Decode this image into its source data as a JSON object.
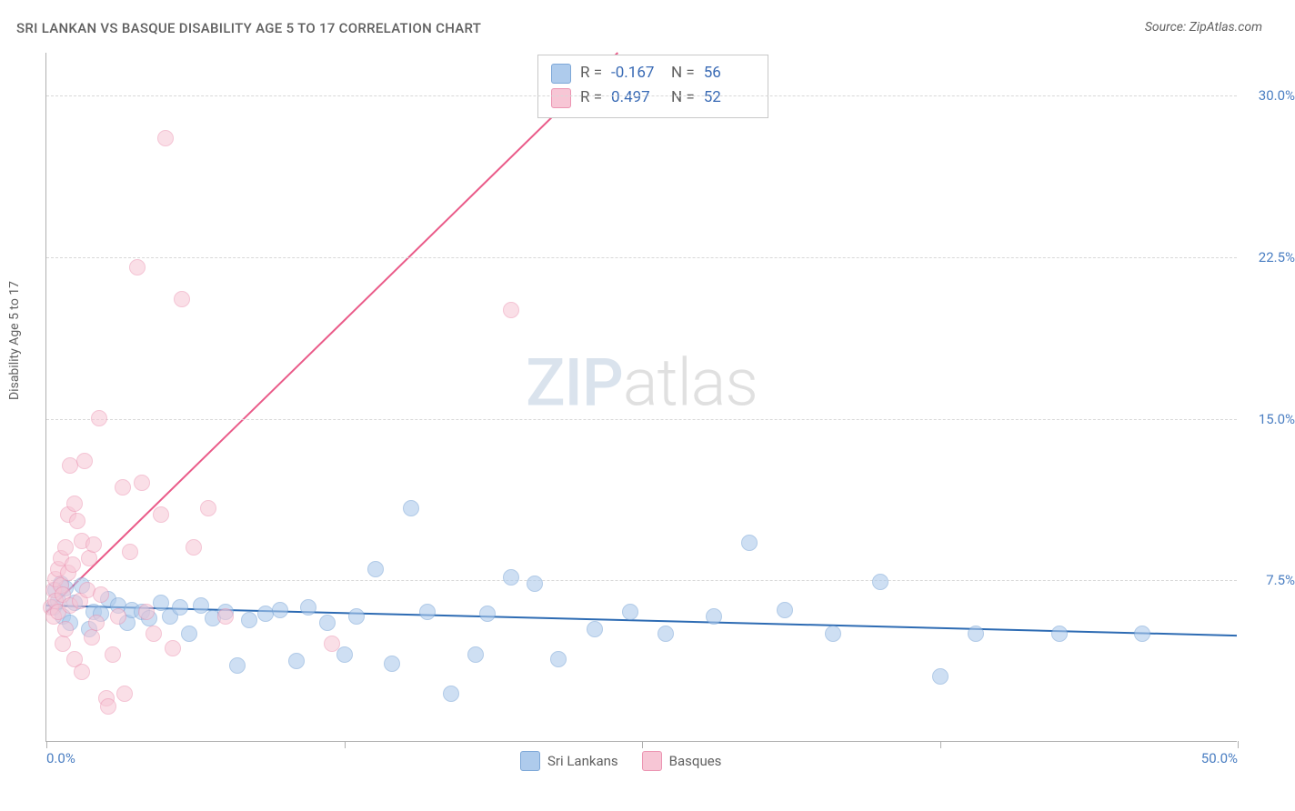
{
  "title": "SRI LANKAN VS BASQUE DISABILITY AGE 5 TO 17 CORRELATION CHART",
  "source": "Source: ZipAtlas.com",
  "ylabel": "Disability Age 5 to 17",
  "watermark": {
    "left": "ZIP",
    "right": "atlas"
  },
  "chart": {
    "type": "scatter",
    "xlim": [
      0,
      50
    ],
    "ylim": [
      0,
      32
    ],
    "xtick_positions": [
      0,
      12.5,
      25,
      37.5,
      50
    ],
    "xtick_labels": {
      "0": "0.0%",
      "50": "50.0%"
    },
    "ytick_positions": [
      7.5,
      15.0,
      22.5,
      30.0
    ],
    "ytick_labels": [
      "7.5%",
      "15.0%",
      "22.5%",
      "30.0%"
    ],
    "grid_color": "#d8d8d8",
    "axis_color": "#b0b0b0",
    "background_color": "#ffffff",
    "tick_label_color": "#4a7ec2",
    "tick_fontsize": 15,
    "title_fontsize": 15,
    "label_fontsize": 14,
    "point_radius": 9,
    "point_stroke_width": 1,
    "series": [
      {
        "name": "Sri Lankans",
        "fill": "#aecbec",
        "stroke": "#7ea8d8",
        "fill_opacity": 0.6,
        "points": [
          [
            0.3,
            6.2
          ],
          [
            0.4,
            7.0
          ],
          [
            0.5,
            6.5
          ],
          [
            0.6,
            7.3
          ],
          [
            0.7,
            5.8
          ],
          [
            0.8,
            7.1
          ],
          [
            1.0,
            5.5
          ],
          [
            1.2,
            6.4
          ],
          [
            1.5,
            7.2
          ],
          [
            1.8,
            5.2
          ],
          [
            2.0,
            6.0
          ],
          [
            2.3,
            5.9
          ],
          [
            2.6,
            6.6
          ],
          [
            3.0,
            6.3
          ],
          [
            3.4,
            5.5
          ],
          [
            3.6,
            6.1
          ],
          [
            4.0,
            6.0
          ],
          [
            4.3,
            5.7
          ],
          [
            4.8,
            6.4
          ],
          [
            5.2,
            5.8
          ],
          [
            5.6,
            6.2
          ],
          [
            6.0,
            5.0
          ],
          [
            6.5,
            6.3
          ],
          [
            7.0,
            5.7
          ],
          [
            7.5,
            6.0
          ],
          [
            8.0,
            3.5
          ],
          [
            8.5,
            5.6
          ],
          [
            9.2,
            5.9
          ],
          [
            9.8,
            6.1
          ],
          [
            10.5,
            3.7
          ],
          [
            11.0,
            6.2
          ],
          [
            11.8,
            5.5
          ],
          [
            12.5,
            4.0
          ],
          [
            13.0,
            5.8
          ],
          [
            13.8,
            8.0
          ],
          [
            14.5,
            3.6
          ],
          [
            15.3,
            10.8
          ],
          [
            16.0,
            6.0
          ],
          [
            17.0,
            2.2
          ],
          [
            18.0,
            4.0
          ],
          [
            18.5,
            5.9
          ],
          [
            19.5,
            7.6
          ],
          [
            20.5,
            7.3
          ],
          [
            21.5,
            3.8
          ],
          [
            23.0,
            5.2
          ],
          [
            24.5,
            6.0
          ],
          [
            26.0,
            5.0
          ],
          [
            28.0,
            5.8
          ],
          [
            29.5,
            9.2
          ],
          [
            31.0,
            6.1
          ],
          [
            33.0,
            5.0
          ],
          [
            35.0,
            7.4
          ],
          [
            37.5,
            3.0
          ],
          [
            39.0,
            5.0
          ],
          [
            42.5,
            5.0
          ],
          [
            46.0,
            5.0
          ]
        ],
        "trend": {
          "x1": 0,
          "y1": 6.3,
          "x2": 50,
          "y2": 4.9,
          "color": "#2d6bb3",
          "width": 2
        }
      },
      {
        "name": "Basques",
        "fill": "#f7c6d5",
        "stroke": "#ec95b2",
        "fill_opacity": 0.55,
        "points": [
          [
            0.2,
            6.2
          ],
          [
            0.3,
            7.0
          ],
          [
            0.3,
            5.8
          ],
          [
            0.4,
            6.5
          ],
          [
            0.4,
            7.5
          ],
          [
            0.5,
            8.0
          ],
          [
            0.5,
            6.0
          ],
          [
            0.6,
            7.2
          ],
          [
            0.6,
            8.5
          ],
          [
            0.7,
            6.8
          ],
          [
            0.7,
            4.5
          ],
          [
            0.8,
            5.2
          ],
          [
            0.8,
            9.0
          ],
          [
            0.9,
            10.5
          ],
          [
            0.9,
            7.8
          ],
          [
            1.0,
            12.8
          ],
          [
            1.0,
            6.3
          ],
          [
            1.1,
            8.2
          ],
          [
            1.2,
            3.8
          ],
          [
            1.2,
            11.0
          ],
          [
            1.3,
            10.2
          ],
          [
            1.4,
            6.5
          ],
          [
            1.5,
            9.3
          ],
          [
            1.5,
            3.2
          ],
          [
            1.6,
            13.0
          ],
          [
            1.7,
            7.0
          ],
          [
            1.8,
            8.5
          ],
          [
            1.9,
            4.8
          ],
          [
            2.0,
            9.1
          ],
          [
            2.1,
            5.5
          ],
          [
            2.2,
            15.0
          ],
          [
            2.3,
            6.8
          ],
          [
            2.5,
            2.0
          ],
          [
            2.6,
            1.6
          ],
          [
            2.8,
            4.0
          ],
          [
            3.0,
            5.8
          ],
          [
            3.2,
            11.8
          ],
          [
            3.3,
            2.2
          ],
          [
            3.5,
            8.8
          ],
          [
            3.8,
            22.0
          ],
          [
            4.0,
            12.0
          ],
          [
            4.2,
            6.0
          ],
          [
            4.5,
            5.0
          ],
          [
            4.8,
            10.5
          ],
          [
            5.0,
            28.0
          ],
          [
            5.3,
            4.3
          ],
          [
            5.7,
            20.5
          ],
          [
            6.2,
            9.0
          ],
          [
            6.8,
            10.8
          ],
          [
            7.5,
            5.8
          ],
          [
            12.0,
            4.5
          ],
          [
            19.5,
            20.0
          ]
        ],
        "trend": {
          "x1": 0,
          "y1": 6.0,
          "x2": 24,
          "y2": 32,
          "color": "#ea5b89",
          "width": 2
        }
      }
    ]
  },
  "stats": {
    "series1": {
      "R_label": "R =",
      "R": "-0.167",
      "N_label": "N =",
      "N": "56"
    },
    "series2": {
      "R_label": "R =",
      "R": "0.497",
      "N_label": "N =",
      "N": "52"
    }
  },
  "legend": {
    "item1": "Sri Lankans",
    "item2": "Basques"
  }
}
